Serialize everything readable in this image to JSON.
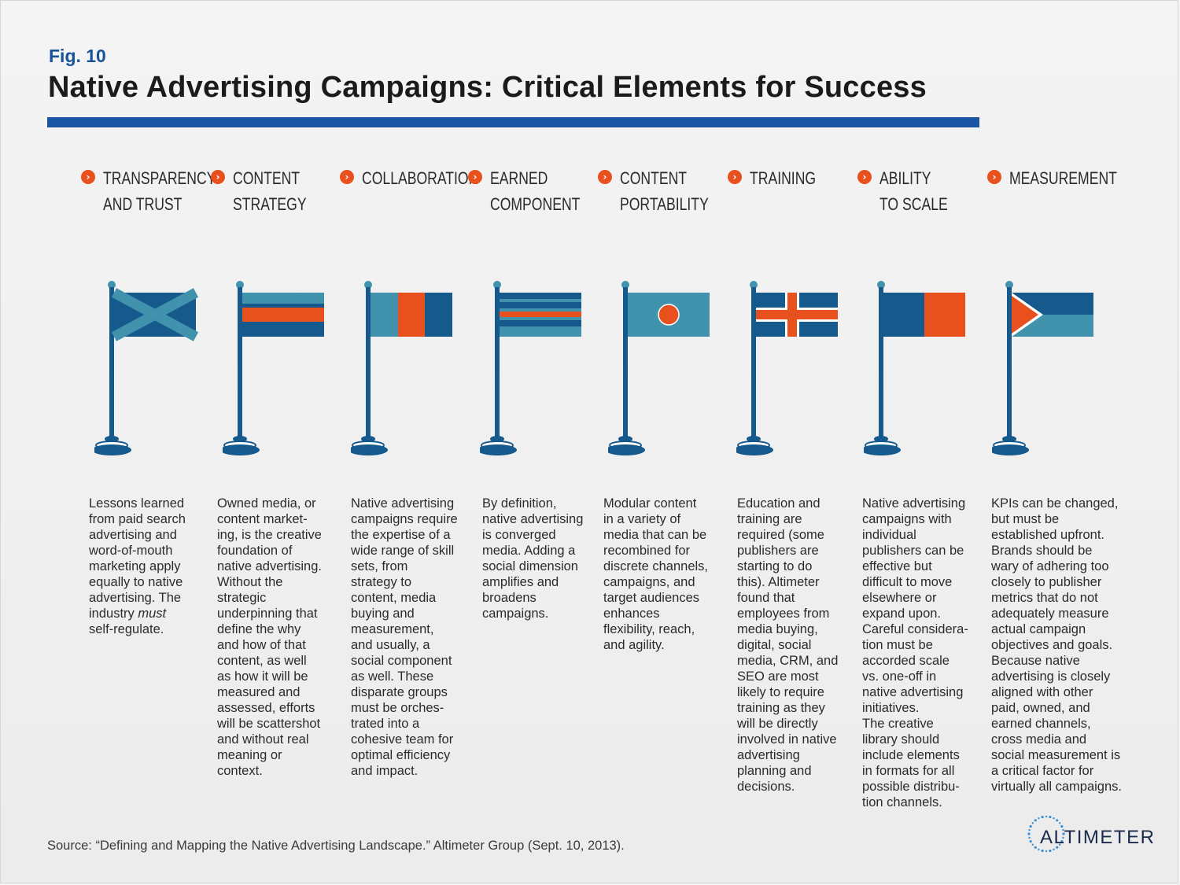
{
  "figure": {
    "label": "Fig. 10",
    "title": "Native Advertising Campaigns: Critical Elements for Success"
  },
  "colors": {
    "accent_blue": "#1a54a3",
    "navy": "#15598d",
    "teal": "#4192ad",
    "orange": "#e8501e"
  },
  "elements": [
    {
      "heading": [
        "TRANSPARENCY",
        "AND TRUST"
      ],
      "flag": "saltire",
      "description": [
        "Lessons learned",
        "from paid search",
        "advertising and",
        "word-of-mouth",
        "marketing apply",
        "equally to native",
        "advertising. The",
        "industry must",
        "self-regulate."
      ]
    },
    {
      "heading": [
        "CONTENT",
        "STRATEGY"
      ],
      "flag": "horizontal-stripes",
      "description": [
        "Owned media, or",
        "content market-",
        "ing, is the creative",
        "foundation of",
        "native advertising.",
        "Without the",
        "strategic",
        "underpinning that",
        "define the why",
        "and how of that",
        "content, as well",
        "as how it will be",
        "measured and",
        "assessed, efforts",
        "will be scattershot",
        "and without real",
        "meaning or",
        "context."
      ]
    },
    {
      "heading": [
        "COLLABORATION"
      ],
      "flag": "vertical-tricolor",
      "description": [
        "Native advertising",
        "campaigns require",
        "the expertise of a",
        "wide range of skill",
        "sets, from",
        "strategy to",
        "content, media",
        "buying and",
        "measurement,",
        "and usually, a",
        "social component",
        "as well. These",
        "disparate groups",
        "must be orches-",
        "trated into a",
        "cohesive team for",
        "optimal efficiency",
        "and impact."
      ]
    },
    {
      "heading": [
        "EARNED",
        "COMPONENT"
      ],
      "flag": "multi-stripes",
      "description": [
        "By definition,",
        "native advertising",
        "is converged",
        "media. Adding a",
        "social dimension",
        "amplifies and",
        "broadens",
        "campaigns."
      ]
    },
    {
      "heading": [
        "CONTENT",
        "PORTABILITY"
      ],
      "flag": "circle",
      "description": [
        "Modular content",
        "in a variety of",
        "media that can be",
        "recombined for",
        "discrete channels,",
        "campaigns, and",
        "target audiences",
        "enhances",
        "flexibility, reach,",
        "and agility."
      ]
    },
    {
      "heading": [
        "TRAINING"
      ],
      "flag": "nordic-cross",
      "description": [
        "Education and",
        "training are",
        "required (some",
        "publishers are",
        "starting to do",
        "this). Altimeter",
        "found that",
        "employees from",
        "media buying,",
        "digital, social",
        "media, CRM, and",
        "SEO are most",
        "likely to require",
        "training as they",
        "will be directly",
        "involved in native",
        "advertising",
        "planning and",
        "decisions."
      ]
    },
    {
      "heading": [
        "ABILITY",
        "TO SCALE"
      ],
      "flag": "bicolor",
      "description": [
        "Native advertising",
        "campaigns with",
        "individual",
        "publishers can be",
        "effective but",
        "difficult to move",
        "elsewhere or",
        "expand upon.",
        "Careful considera-",
        "tion must be",
        "accorded scale",
        "vs. one-off in",
        "native advertising",
        "initiatives.",
        "The creative",
        "library should",
        "include elements",
        "in formats for all",
        "possible distribu-",
        "tion channels."
      ]
    },
    {
      "heading": [
        "MEASUREMENT"
      ],
      "flag": "triangle",
      "description": [
        "KPIs can be changed,",
        "but must be",
        "established upfront.",
        "Brands should be",
        "wary of adhering too",
        "closely to publisher",
        "metrics that do not",
        "adequately measure",
        "actual campaign",
        "objectives and goals.",
        "Because native",
        "advertising is closely",
        "aligned with other",
        "paid, owned, and",
        "earned channels,",
        "cross media and",
        "social measurement is",
        "a critical factor for",
        "virtually all campaigns."
      ]
    }
  ],
  "source": "Source: “Defining and Mapping the Native Advertising Landscape.” Altimeter Group (Sept. 10, 2013).",
  "logo": {
    "text": "ALTIMETER"
  }
}
